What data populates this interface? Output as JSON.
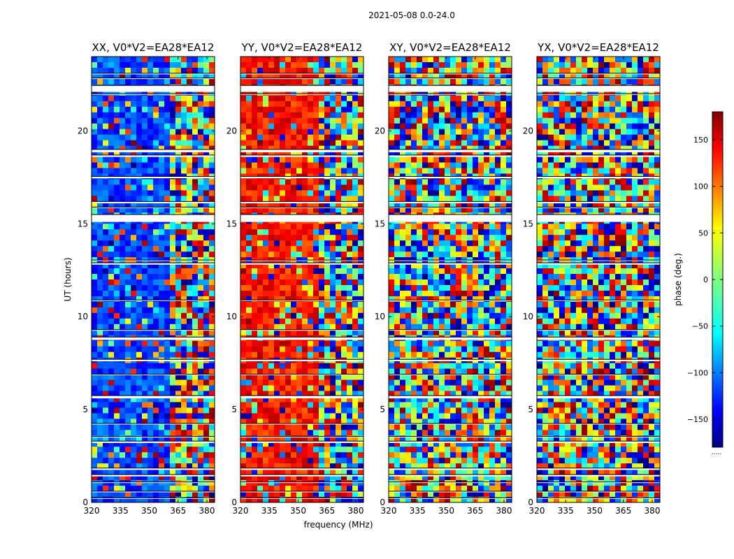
{
  "figure": {
    "suptitle": "2021-05-08 0.0-24.0"
  },
  "chart_data": {
    "type": "heatmap",
    "title": "2021-05-08 0.0-24.0",
    "xlabel": "frequency (MHz)",
    "ylabel": "UT (hours)",
    "xlim": [
      320,
      384
    ],
    "ylim": [
      0,
      24
    ],
    "x_ticks": [
      320,
      335,
      350,
      365,
      380
    ],
    "y_ticks": [
      0,
      5,
      10,
      15,
      20
    ],
    "colorbar": {
      "label": "phase (deg.)",
      "range": [
        -180,
        180
      ],
      "ticks": [
        -150,
        -100,
        -50,
        0,
        50,
        100,
        150
      ],
      "tick_labels": [
        "−150",
        "−100",
        "−50",
        "0",
        "50",
        "100",
        "150"
      ],
      "colormap": "jet",
      "colors": [
        "#00007f",
        "#0000ff",
        "#007fff",
        "#00ffff",
        "#7fff7f",
        "#ffff00",
        "#ff7f00",
        "#ff0000",
        "#7f0000"
      ],
      "footnote": "....."
    },
    "band_edge_mhz": 360,
    "panels": [
      {
        "pol": "XX",
        "title": "XX, V0*V2=EA28*EA12",
        "smooth_phase_deg": -110
      },
      {
        "pol": "YY",
        "title": "YY, V0*V2=EA28*EA12",
        "smooth_phase_deg": 130
      },
      {
        "pol": "XY",
        "title": "XY, V0*V2=EA28*EA12",
        "smooth_phase_deg": null
      },
      {
        "pol": "YX",
        "title": "YX, V0*V2=EA28*EA12",
        "smooth_phase_deg": null
      }
    ],
    "flagged_ut_intervals": [
      [
        0.2,
        0.25
      ],
      [
        0.55,
        0.6
      ],
      [
        1.05,
        1.1
      ],
      [
        1.4,
        1.5
      ],
      [
        1.75,
        1.85
      ],
      [
        3.2,
        3.3
      ],
      [
        3.5,
        3.55
      ],
      [
        4.2,
        4.25
      ],
      [
        5.6,
        5.75
      ],
      [
        6.85,
        6.9
      ],
      [
        7.6,
        7.7
      ],
      [
        8.75,
        8.9
      ],
      [
        9.25,
        9.3
      ],
      [
        10.85,
        10.9
      ],
      [
        12.8,
        12.9
      ],
      [
        13.0,
        13.05
      ],
      [
        15.1,
        15.5
      ],
      [
        15.85,
        15.9
      ],
      [
        16.1,
        16.2
      ],
      [
        17.45,
        17.55
      ],
      [
        18.6,
        18.7
      ],
      [
        18.85,
        19.0
      ],
      [
        21.95,
        22.0
      ],
      [
        22.1,
        22.45
      ],
      [
        22.8,
        22.85
      ],
      [
        23.05,
        23.1
      ]
    ]
  }
}
